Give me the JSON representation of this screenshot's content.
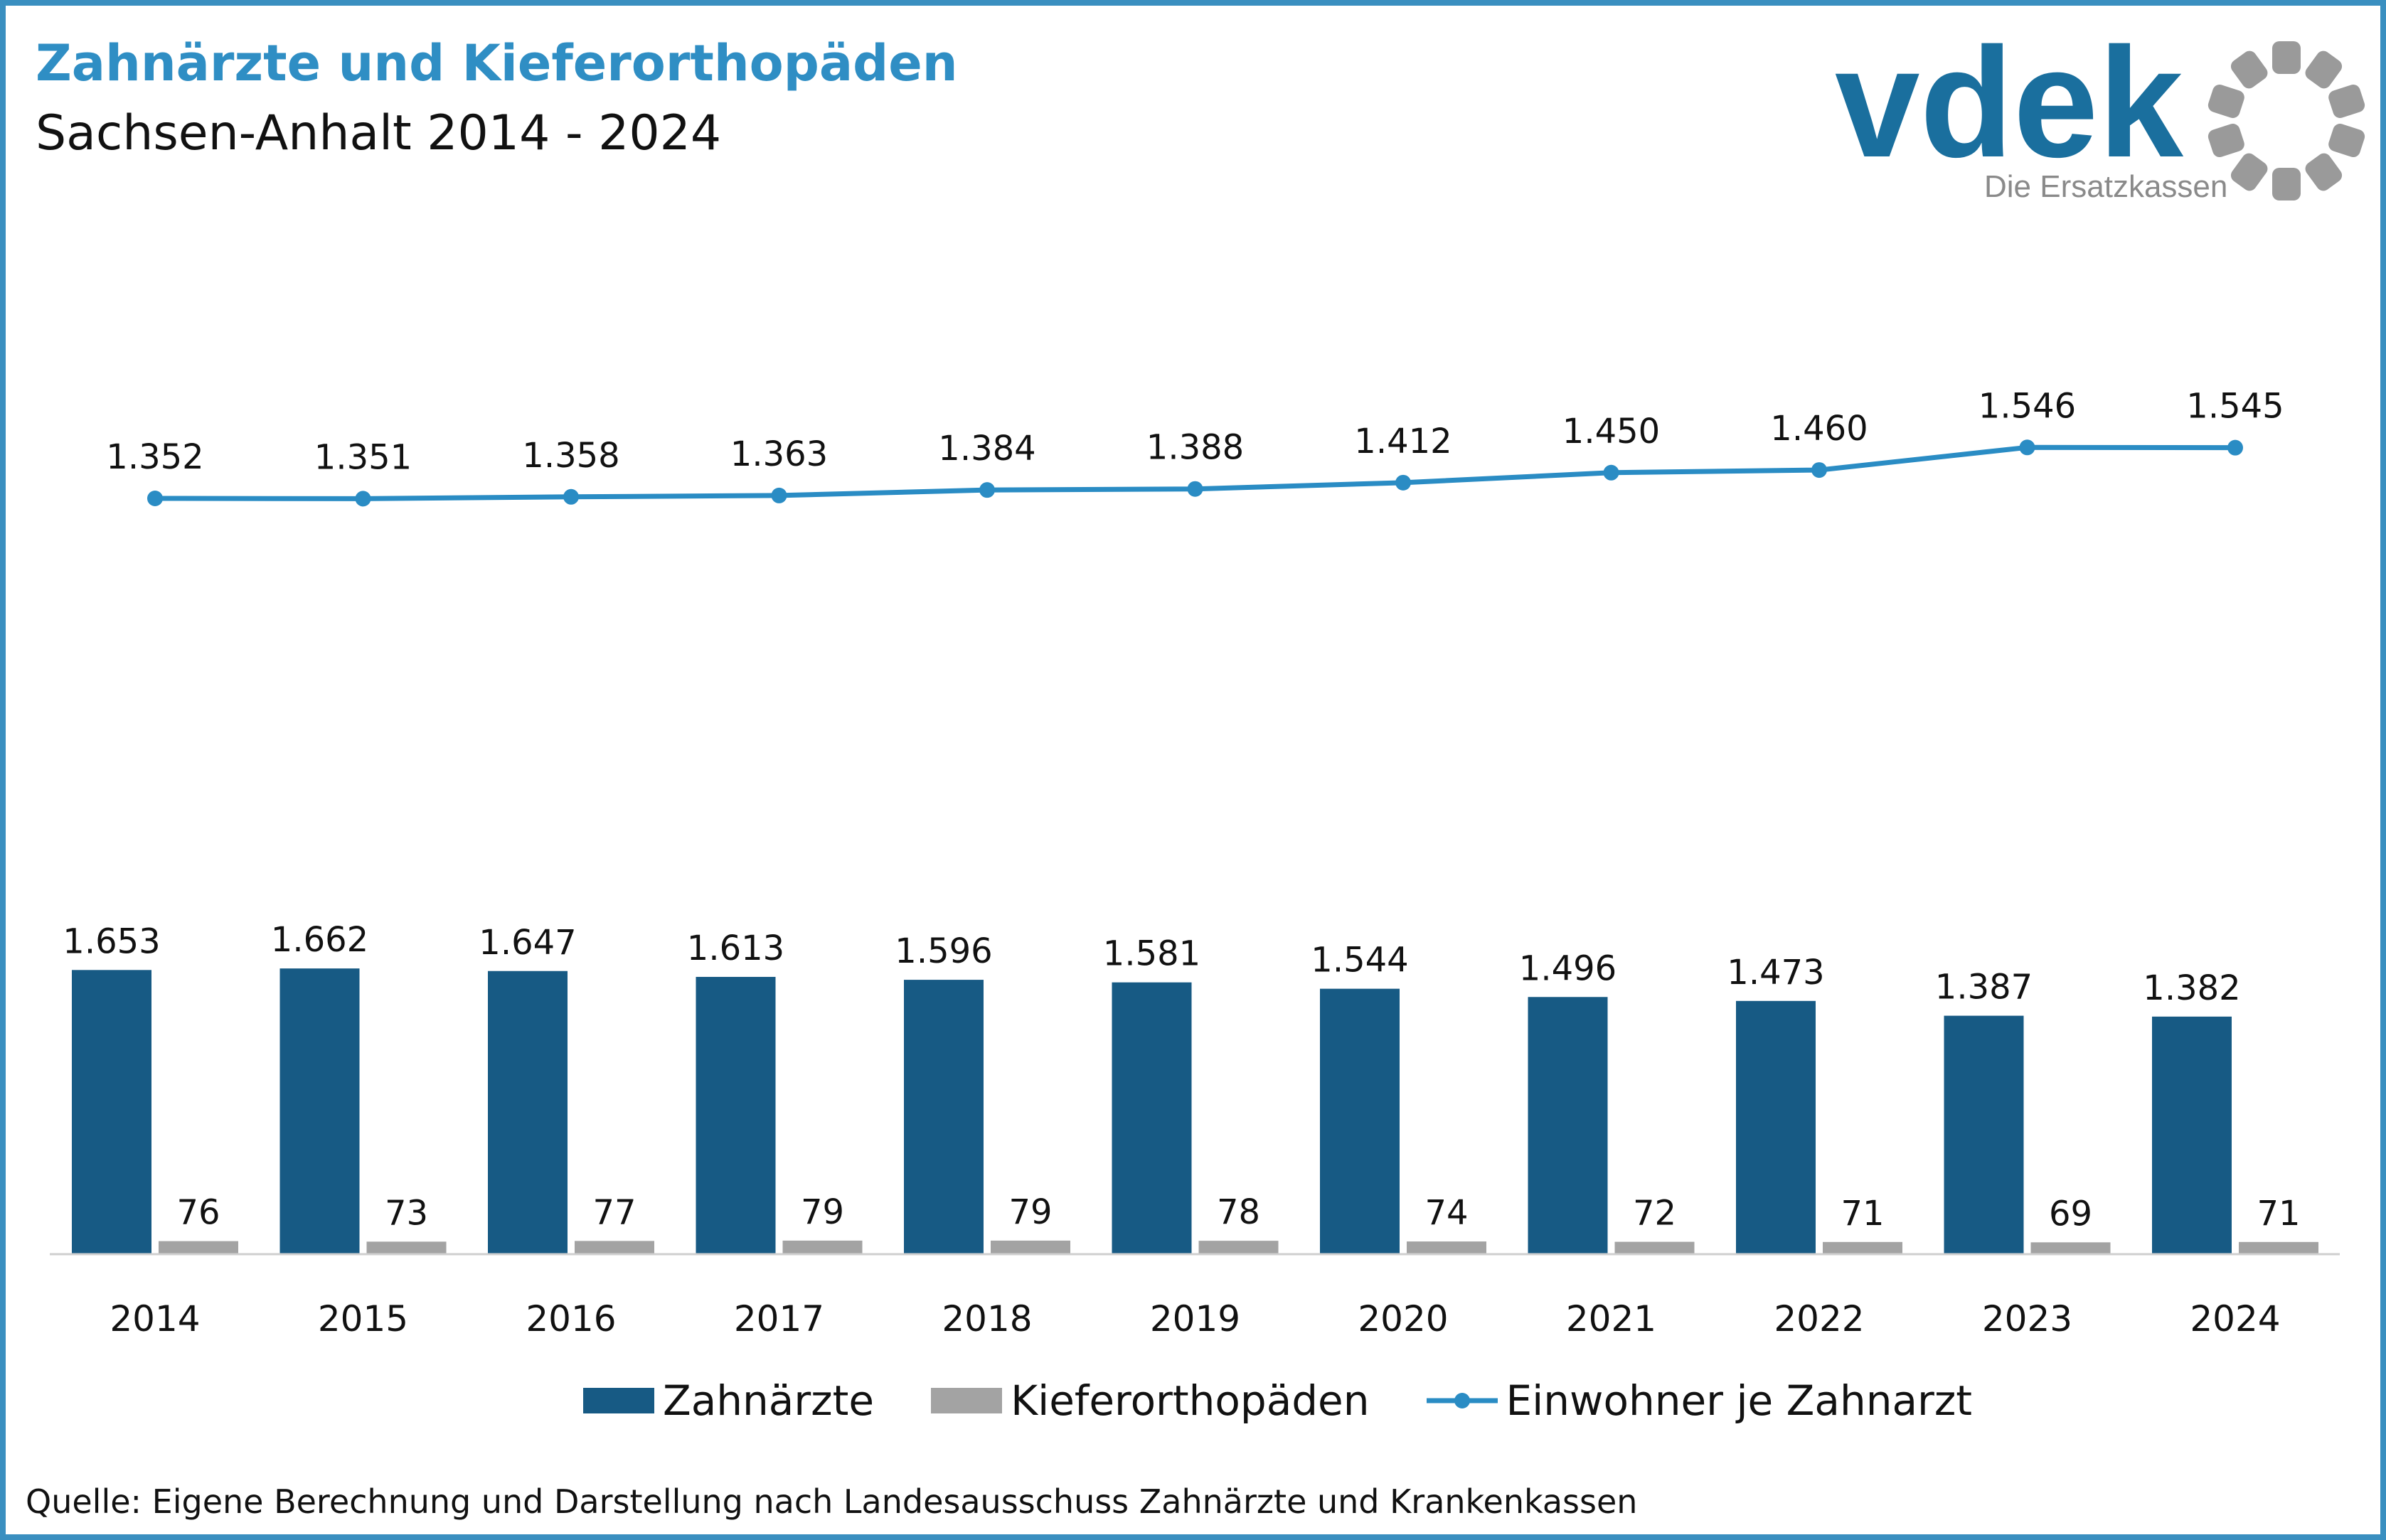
{
  "header": {
    "title": "Zahnärzte und Kieferorthopäden",
    "subtitle": "Sachsen-Anhalt 2014 - 2024"
  },
  "logo": {
    "wordmark": "vdek",
    "tagline": "Die Ersatzkassen",
    "color": "#1a6f9e",
    "ring_color": "#9a9a9a"
  },
  "colors": {
    "zahnaerzte": "#175a84",
    "kieferorthopaeden": "#a3a3a3",
    "einwohner_line": "#2a8cc4",
    "frame": "#3a8fc0",
    "title": "#2f8ec4"
  },
  "chart_data": {
    "type": "bar",
    "categories": [
      "2014",
      "2015",
      "2016",
      "2017",
      "2018",
      "2019",
      "2020",
      "2021",
      "2022",
      "2023",
      "2024"
    ],
    "series": [
      {
        "name": "Zahnärzte",
        "type": "bar",
        "values": [
          1653,
          1662,
          1647,
          1613,
          1596,
          1581,
          1544,
          1496,
          1473,
          1387,
          1382
        ],
        "labels": [
          "1.653",
          "1.662",
          "1.647",
          "1.613",
          "1.596",
          "1.581",
          "1.544",
          "1.496",
          "1.473",
          "1.387",
          "1.382"
        ]
      },
      {
        "name": "Kieferorthopäden",
        "type": "bar",
        "values": [
          76,
          73,
          77,
          79,
          79,
          78,
          74,
          72,
          71,
          69,
          71
        ],
        "labels": [
          "76",
          "73",
          "77",
          "79",
          "79",
          "78",
          "74",
          "72",
          "71",
          "69",
          "71"
        ]
      },
      {
        "name": "Einwohner je Zahnarzt",
        "type": "line",
        "values": [
          1352,
          1351,
          1358,
          1363,
          1384,
          1388,
          1412,
          1450,
          1460,
          1546,
          1545
        ],
        "labels": [
          "1.352",
          "1.351",
          "1.358",
          "1.363",
          "1.384",
          "1.388",
          "1.412",
          "1.450",
          "1.460",
          "1.546",
          "1.545"
        ]
      }
    ],
    "legend_position": "bottom",
    "grid": false
  },
  "footer": {
    "source": "Quelle: Eigene Berechnung und Darstellung nach Landesausschuss Zahnärzte und Krankenkassen"
  }
}
